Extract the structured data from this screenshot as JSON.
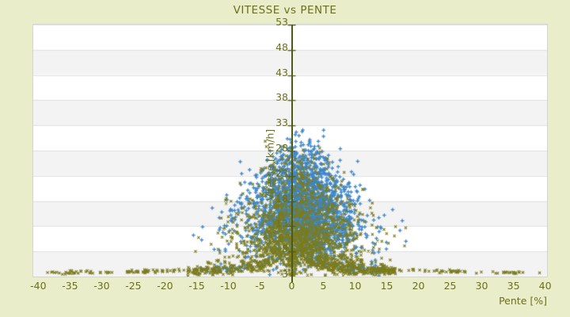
{
  "page": {
    "background": "#e9edca"
  },
  "chart_data": {
    "type": "scatter",
    "title": "VITESSE vs PENTE",
    "xlabel": "Pente [%]",
    "ylabel": "Vitesse [km/h]",
    "xlim": [
      -40.8,
      40.3
    ],
    "ylim": [
      3,
      53
    ],
    "x_ticks": [
      -40,
      -35,
      -30,
      -25,
      -20,
      -15,
      -10,
      -5,
      0,
      5,
      10,
      15,
      20,
      25,
      30,
      35,
      40
    ],
    "y_ticks": [
      3,
      8,
      13,
      18,
      23,
      28,
      33,
      38,
      43,
      48,
      53
    ],
    "grid": "horizontal-bands",
    "legend": "none",
    "colors": {
      "band_white": "#ffffff",
      "band_gray": "#f3f3f3",
      "gridline": "#e0e0e0",
      "plot_border": "#d4d4d4",
      "axis_line": "#4f5a17",
      "text": "#6b7119",
      "series_blue": "#3d86c8",
      "series_olive": "#7c7c1e"
    },
    "series": [
      {
        "name": "series-blue",
        "marker": "plus",
        "color": "#3d86c8"
      },
      {
        "name": "series-olive",
        "marker": "x",
        "color": "#7c7c1e"
      }
    ],
    "point_generation": {
      "comment": "Dense unlabeled point cloud (~4800 pts): triangular cloud apex ~(0,35), dense blue core ~(2.5,15), olive hyperbolic arcs v=v_base+k/|p| descending to both sides, sparse olive bottom line v~4 out to |p|~38",
      "seed": 1337,
      "components": [
        {
          "series": 0,
          "type": "triangle",
          "n": 1500,
          "p_mu": 1.3,
          "sigma_base": 7.0,
          "sigma_slope": 0.185,
          "sigma_min": 1.2,
          "v_min": 3.4,
          "v_span": 31.5,
          "v_pow": 1.15
        },
        {
          "series": 0,
          "type": "blob",
          "n": 950,
          "p_mu": 2.6,
          "p_sigma": 3.5,
          "v_mu": 15.5,
          "v_sigma": 4.3
        },
        {
          "series": 0,
          "type": "arcs",
          "n": 140,
          "right_prob": 0.6,
          "ks": [
            9,
            13,
            18,
            25
          ],
          "k_wts": [
            3,
            3,
            2,
            1
          ],
          "p_min": 1.6,
          "p_range": 13,
          "p_pow": 1.5,
          "v_base": 3.3,
          "v_max": 27,
          "noise": 0.4
        },
        {
          "series": 1,
          "type": "triangle",
          "n": 720,
          "p_mu": 0.8,
          "sigma_base": 7.8,
          "sigma_slope": 0.2,
          "sigma_min": 1.3,
          "v_min": 3.3,
          "v_span": 29,
          "v_pow": 1.3
        },
        {
          "series": 1,
          "type": "blob",
          "n": 520,
          "p_mu": 2.0,
          "p_sigma": 4.8,
          "v_mu": 9.5,
          "v_sigma": 3.0
        },
        {
          "series": 1,
          "type": "blob",
          "n": 90,
          "p_mu": 0.15,
          "p_sigma": 0.35,
          "v_mu": 6.5,
          "v_sigma": 2.2
        },
        {
          "series": 1,
          "type": "arcs",
          "n": 760,
          "right_prob": 0.58,
          "ks": [
            7,
            10,
            13,
            17,
            22,
            28,
            35
          ],
          "k_wts": [
            4,
            4,
            3,
            3,
            2,
            1,
            1
          ],
          "p_min": 1.4,
          "p_range": 15,
          "p_pow": 1.6,
          "v_base": 3.25,
          "v_max": 30,
          "noise": 0.35
        },
        {
          "series": 1,
          "type": "bottom_line",
          "n": 175,
          "p_min": 12,
          "p_range": 27,
          "right_prob": 0.5,
          "k": 15,
          "v_base": 3.35,
          "noise": 0.15,
          "cluster_prob": 0.55,
          "cluster_spread": 0.9
        }
      ]
    }
  }
}
